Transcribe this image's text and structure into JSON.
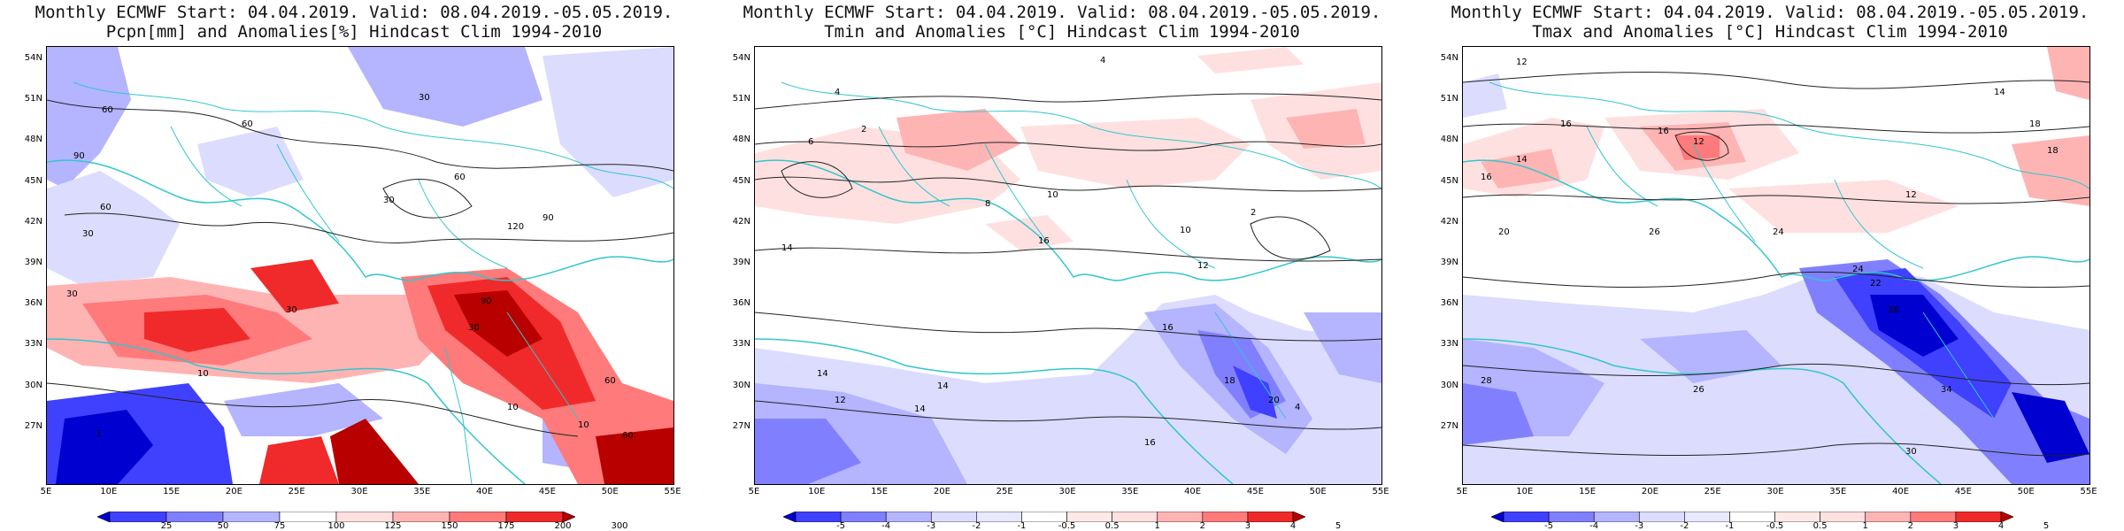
{
  "colors": {
    "coast": "#33c6cc",
    "contour": "#222222",
    "warm": [
      "#ffe0e0",
      "#ffb4b4",
      "#ff7a7a",
      "#f02a2a",
      "#b80000"
    ],
    "cool": [
      "#dcdcff",
      "#b4b4ff",
      "#8080ff",
      "#4040ff",
      "#0000d0"
    ]
  },
  "lat_labels": [
    "54N",
    "51N",
    "48N",
    "45N",
    "42N",
    "39N",
    "36N",
    "33N",
    "30N",
    "27N"
  ],
  "lon_labels": [
    "5E",
    "10E",
    "15E",
    "20E",
    "25E",
    "30E",
    "35E",
    "40E",
    "45E",
    "50E",
    "55E"
  ],
  "panels": [
    {
      "title_line1": "Monthly ECMWF Start: 04.04.2019. Valid: 08.04.2019.-05.05.2019.",
      "title_line2": "Pcpn[mm] and Anomalies[%] Hindcast Clim 1994-2010",
      "colorbar": [
        "25",
        "50",
        "75",
        "100",
        "125",
        "150",
        "175",
        "200",
        "300"
      ],
      "contour_labels": [
        "60",
        "60",
        "90",
        "30",
        "60",
        "90",
        "30",
        "60",
        "120",
        "90",
        "10",
        "30",
        "10",
        "30",
        "30",
        "60",
        "30",
        "10",
        "1",
        "60"
      ]
    },
    {
      "title_line1": "Monthly ECMWF Start: 04.04.2019. Valid: 08.04.2019.-05.05.2019.",
      "title_line2": "Tmin and Anomalies [°C] Hindcast Clim 1994-2010",
      "colorbar": [
        "-5",
        "-4",
        "-3",
        "-2",
        "-1",
        "-0.5",
        "0.5",
        "1",
        "2",
        "3",
        "4",
        "5"
      ],
      "contour_labels": [
        "4",
        "4",
        "2",
        "6",
        "10",
        "8",
        "10",
        "12",
        "14",
        "16",
        "14",
        "14",
        "12",
        "18",
        "14",
        "16",
        "20",
        "2",
        "4",
        "16"
      ]
    },
    {
      "title_line1": "Monthly ECMWF Start: 04.04.2019. Valid: 08.04.2019.-05.05.2019.",
      "title_line2": "Tmax and Anomalies [°C] Hindcast Clim 1994-2010",
      "colorbar": [
        "-5",
        "-4",
        "-3",
        "-2",
        "-1",
        "-0.5",
        "0.5",
        "1",
        "2",
        "3",
        "4",
        "5"
      ],
      "contour_labels": [
        "12",
        "14",
        "16",
        "18",
        "12",
        "16",
        "14",
        "18",
        "12",
        "16",
        "20",
        "24",
        "26",
        "28",
        "22",
        "30",
        "28",
        "26",
        "24",
        "34"
      ]
    }
  ]
}
